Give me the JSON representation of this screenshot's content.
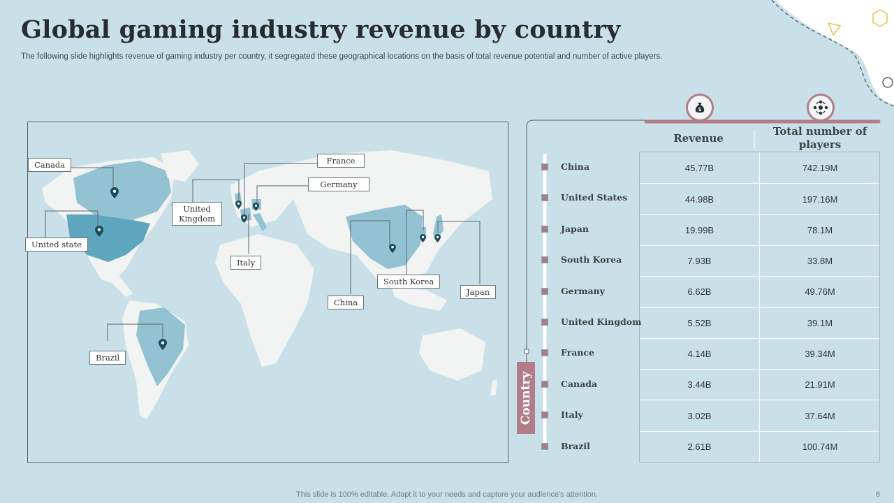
{
  "title": "Global gaming industry revenue by country",
  "subtitle": "The following slide highlights revenue of gaming industry per country, it segregated these geographical locations on the basis of total revenue potential and number of active players.",
  "map_labels": {
    "canada": "Canada",
    "united_state": "United state",
    "brazil": "Brazil",
    "united_kingdom": "United Kingdom",
    "italy": "Italy",
    "france": "France",
    "germany": "Germany",
    "china": "China",
    "south_korea": "South Korea",
    "japan": "Japan"
  },
  "table": {
    "revenue_header": "Revenue",
    "players_header": "Total number of players",
    "side_label": "Country",
    "rows": [
      {
        "country": "China",
        "revenue": "45.77B",
        "players": "742.19M"
      },
      {
        "country": "United States",
        "revenue": "44.98B",
        "players": "197.16M"
      },
      {
        "country": "Japan",
        "revenue": "19.99B",
        "players": "78.1M"
      },
      {
        "country": "South Korea",
        "revenue": "7.93B",
        "players": "33.8M"
      },
      {
        "country": "Germany",
        "revenue": "6.62B",
        "players": "49.76M"
      },
      {
        "country": "United Kingdom",
        "revenue": "5.52B",
        "players": "39.1M"
      },
      {
        "country": "France",
        "revenue": "4.14B",
        "players": "39.34M"
      },
      {
        "country": "Canada",
        "revenue": "3.44B",
        "players": "21.91M"
      },
      {
        "country": "Italy",
        "revenue": "3.02B",
        "players": "37.64M"
      },
      {
        "country": "Brazil",
        "revenue": "2.61B",
        "players": "100.74M"
      }
    ]
  },
  "icons": {
    "revenue": "money-bag-icon",
    "players": "network-icon"
  },
  "colors": {
    "background": "#c9e0e8",
    "accent": "#b07d88",
    "highlight_country": "#5ea6bd",
    "country": "#93c3d3",
    "land": "#f2f3f3"
  },
  "footer": "This slide is 100% editable. Adapt it to your needs and capture your audience's attention.",
  "page_number": "6"
}
